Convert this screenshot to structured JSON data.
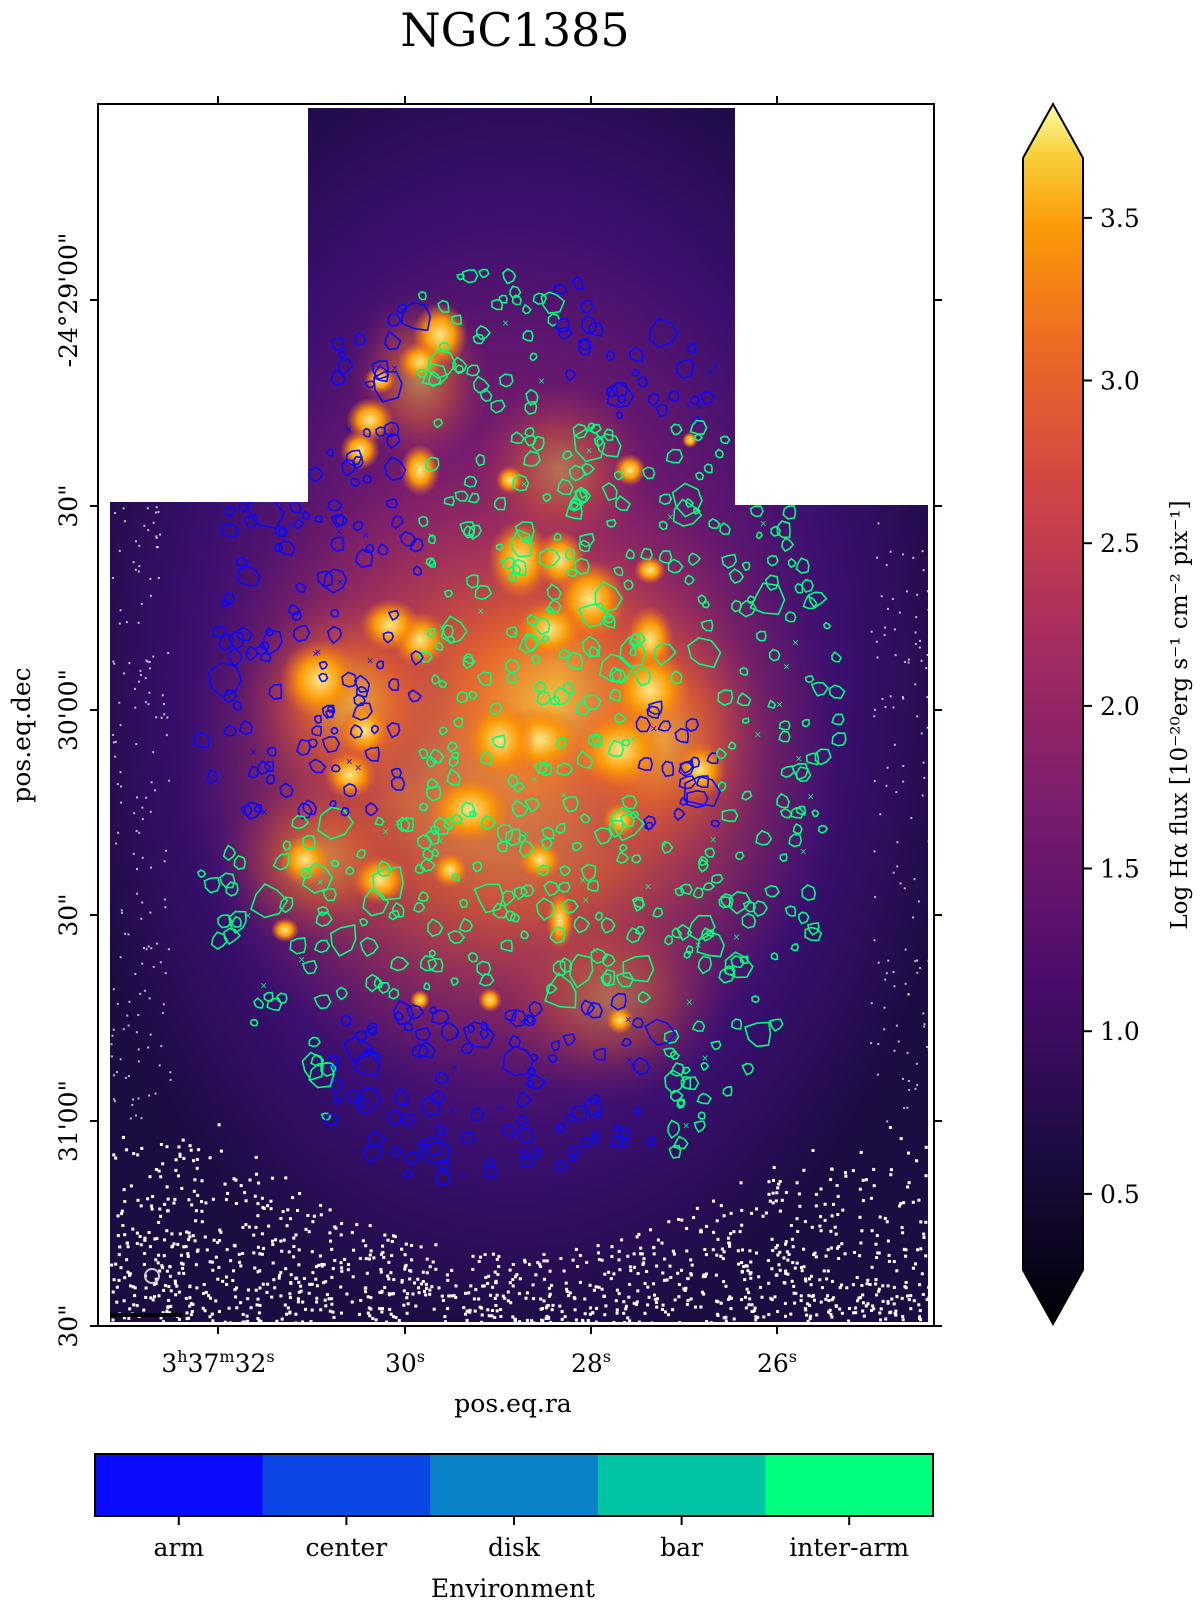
{
  "chart_data": {
    "type": "heatmap",
    "title": "NGC1385",
    "xlabel": "pos.eq.ra",
    "ylabel": "pos.eq.dec",
    "x_ticks": [
      {
        "pre": "3",
        "h": "h",
        "mid": "37",
        "m": "m",
        "val": "32",
        "s": "s"
      },
      {
        "pre": "",
        "h": "",
        "mid": "",
        "m": "",
        "val": "30",
        "s": "s"
      },
      {
        "pre": "",
        "h": "",
        "mid": "",
        "m": "",
        "val": "28",
        "s": "s"
      },
      {
        "pre": "",
        "h": "",
        "mid": "",
        "m": "",
        "val": "26",
        "s": "s"
      }
    ],
    "y_ticks": [
      "-24°29'00\"",
      "30\"",
      "30'00\"",
      "30\"",
      "31'00\"",
      "30\""
    ],
    "colorbar": {
      "label": "Log Hα flux [10⁻²⁰erg s⁻¹ cm⁻² pix⁻¹]",
      "ticks": [
        "0.5",
        "1.0",
        "1.5",
        "2.0",
        "2.5",
        "3.0",
        "3.5"
      ],
      "tick_values": [
        0.5,
        1.0,
        1.5,
        2.0,
        2.5,
        3.0,
        3.5
      ],
      "range": [
        0.1,
        3.85
      ],
      "colormap": "inferno",
      "extend": "both"
    },
    "environment_legend": {
      "label": "Environment",
      "categories": [
        {
          "name": "arm",
          "color": "#0a0aff"
        },
        {
          "name": "center",
          "color": "#0a46e6"
        },
        {
          "name": "disk",
          "color": "#0a82c8"
        },
        {
          "name": "bar",
          "color": "#00c4a4"
        },
        {
          "name": "inter-arm",
          "color": "#00ff7c"
        }
      ]
    }
  }
}
